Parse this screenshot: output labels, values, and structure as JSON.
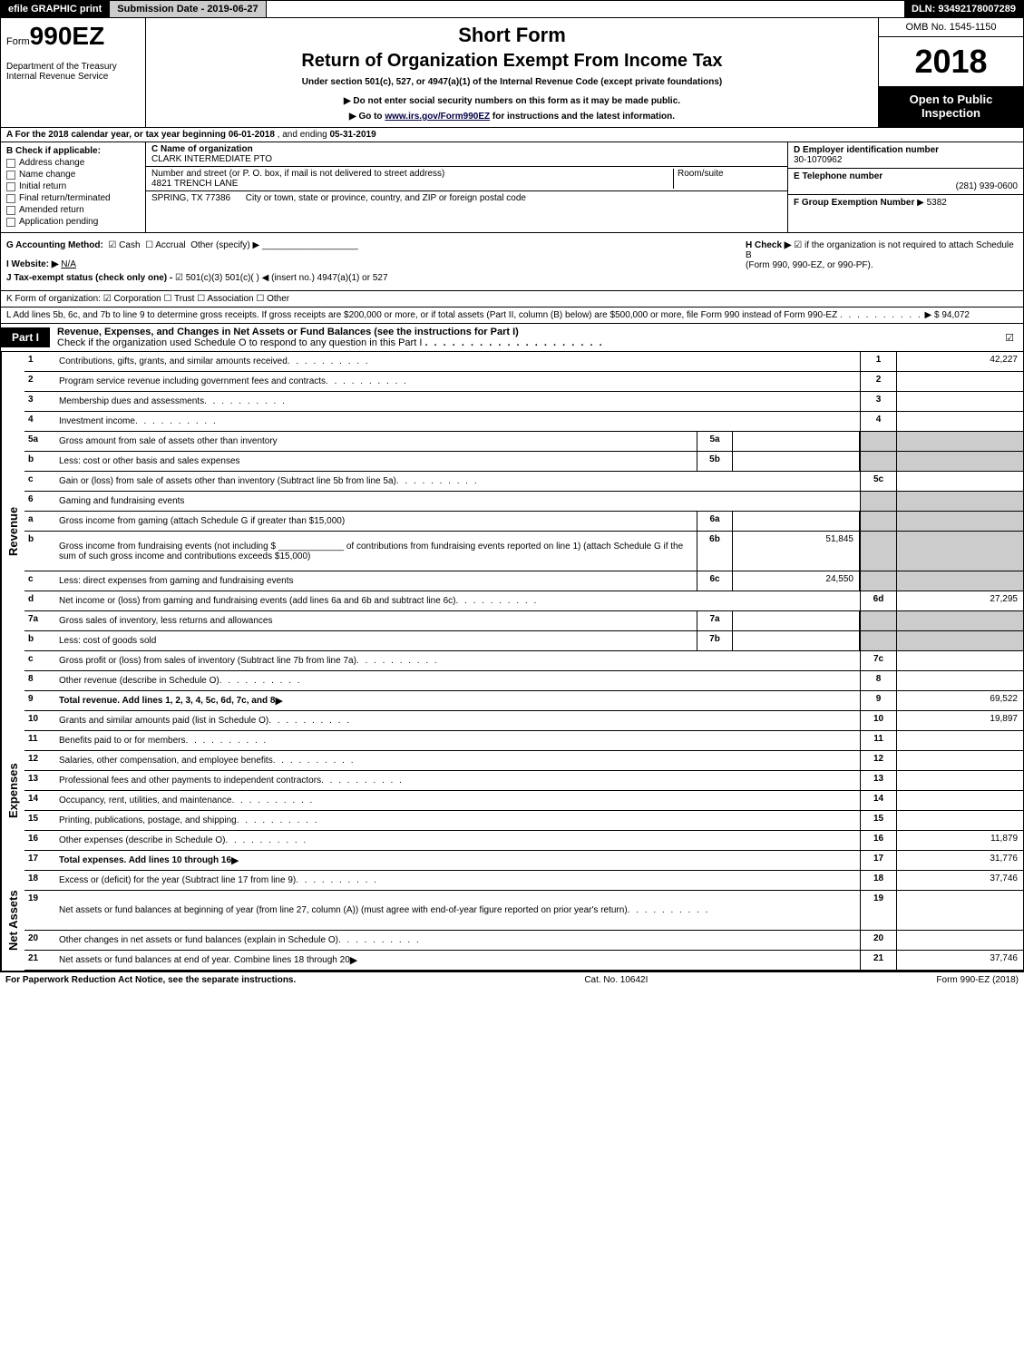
{
  "topbar": {
    "efile": "efile GRAPHIC print",
    "submission": "Submission Date - 2019-06-27",
    "dln": "DLN: 93492178007289"
  },
  "header": {
    "form_prefix": "Form",
    "form_num": "990EZ",
    "dept1": "Department of the Treasury",
    "dept2": "Internal Revenue Service",
    "short_form": "Short Form",
    "title": "Return of Organization Exempt From Income Tax",
    "under": "Under section 501(c), 527, or 4947(a)(1) of the Internal Revenue Code (except private foundations)",
    "donot": "▶ Do not enter social security numbers on this form as it may be made public.",
    "goto_pre": "▶ Go to ",
    "goto_link": "www.irs.gov/Form990EZ",
    "goto_post": " for instructions and the latest information.",
    "omb": "OMB No. 1545-1150",
    "year": "2018",
    "open1": "Open to Public",
    "open2": "Inspection"
  },
  "sectionA": {
    "text_pre": "A  For the 2018 calendar year, or tax year beginning ",
    "begin": "06-01-2018",
    "mid": " , and ending ",
    "end": "05-31-2019"
  },
  "sectionB": {
    "label": "B  Check if applicable:",
    "items": [
      "Address change",
      "Name change",
      "Initial return",
      "Final return/terminated",
      "Amended return",
      "Application pending"
    ]
  },
  "sectionC": {
    "c_label": "C Name of organization",
    "c_name": "CLARK INTERMEDIATE PTO",
    "addr_label": "Number and street (or P. O. box, if mail is not delivered to street address)",
    "addr": "4821 TRENCH LANE",
    "room_label": "Room/suite",
    "city_label": "City or town, state or province, country, and ZIP or foreign postal code",
    "city": "SPRING, TX  77386"
  },
  "sectionDEF": {
    "d_label": "D Employer identification number",
    "d_val": "30-1070962",
    "e_label": "E Telephone number",
    "e_val": "(281) 939-0600",
    "f_label": "F Group Exemption Number",
    "f_arrow": "▶",
    "f_val": "5382"
  },
  "gh": {
    "g_label": "G Accounting Method:",
    "g_cash": "Cash",
    "g_accrual": "Accrual",
    "g_other": "Other (specify) ▶",
    "i_label": "I Website: ▶",
    "i_val": "N/A",
    "j_label": "J Tax-exempt status (check only one) -",
    "j_opts": "501(c)(3)    501(c)(  ) ◀ (insert no.)    4947(a)(1) or    527",
    "h_label": "H  Check ▶",
    "h_text1": "if the organization is not required to attach Schedule B",
    "h_text2": "(Form 990, 990-EZ, or 990-PF)."
  },
  "k": "K Form of organization:    ☑ Corporation    ☐ Trust    ☐ Association    ☐ Other",
  "l": {
    "text": "L Add lines 5b, 6c, and 7b to line 9 to determine gross receipts. If gross receipts are $200,000 or more, or if total assets (Part II, column (B) below) are $500,000 or more, file Form 990 instead of Form 990-EZ",
    "arrow": "▶",
    "amount": "$ 94,072"
  },
  "part1": {
    "label": "Part I",
    "title": "Revenue, Expenses, and Changes in Net Assets or Fund Balances (see the instructions for Part I)",
    "check_text": "Check if the organization used Schedule O to respond to any question in this Part I",
    "checked": "☑"
  },
  "sections": {
    "revenue_label": "Revenue",
    "expenses_label": "Expenses",
    "netassets_label": "Net Assets"
  },
  "rows": [
    {
      "n": "1",
      "desc": "Contributions, gifts, grants, and similar amounts received",
      "rn": "1",
      "rv": "42,227"
    },
    {
      "n": "2",
      "desc": "Program service revenue including government fees and contracts",
      "rn": "2",
      "rv": ""
    },
    {
      "n": "3",
      "desc": "Membership dues and assessments",
      "rn": "3",
      "rv": ""
    },
    {
      "n": "4",
      "desc": "Investment income",
      "rn": "4",
      "rv": ""
    },
    {
      "n": "5a",
      "desc": "Gross amount from sale of assets other than inventory",
      "mn": "5a",
      "mv": "",
      "grey": true
    },
    {
      "n": "b",
      "desc": "Less: cost or other basis and sales expenses",
      "mn": "5b",
      "mv": "",
      "grey": true
    },
    {
      "n": "c",
      "desc": "Gain or (loss) from sale of assets other than inventory (Subtract line 5b from line 5a)",
      "rn": "5c",
      "rv": ""
    },
    {
      "n": "6",
      "desc": "Gaming and fundraising events",
      "grey": true,
      "noright": true
    },
    {
      "n": "a",
      "desc": "Gross income from gaming (attach Schedule G if greater than $15,000)",
      "mn": "6a",
      "mv": "",
      "grey": true
    },
    {
      "n": "b",
      "desc": "Gross income from fundraising events (not including $ _____________ of contributions from fundraising events reported on line 1) (attach Schedule G if the sum of such gross income and contributions exceeds $15,000)",
      "mn": "6b",
      "mv": "51,845",
      "grey": true,
      "tall": true
    },
    {
      "n": "c",
      "desc": "Less: direct expenses from gaming and fundraising events",
      "mn": "6c",
      "mv": "24,550",
      "grey": true
    },
    {
      "n": "d",
      "desc": "Net income or (loss) from gaming and fundraising events (add lines 6a and 6b and subtract line 6c)",
      "rn": "6d",
      "rv": "27,295"
    },
    {
      "n": "7a",
      "desc": "Gross sales of inventory, less returns and allowances",
      "mn": "7a",
      "mv": "",
      "grey": true
    },
    {
      "n": "b",
      "desc": "Less: cost of goods sold",
      "mn": "7b",
      "mv": "",
      "grey": true
    },
    {
      "n": "c",
      "desc": "Gross profit or (loss) from sales of inventory (Subtract line 7b from line 7a)",
      "rn": "7c",
      "rv": ""
    },
    {
      "n": "8",
      "desc": "Other revenue (describe in Schedule O)",
      "rn": "8",
      "rv": ""
    },
    {
      "n": "9",
      "desc": "Total revenue. Add lines 1, 2, 3, 4, 5c, 6d, 7c, and 8",
      "rn": "9",
      "rv": "69,522",
      "bold": true,
      "arrow": true
    }
  ],
  "exp_rows": [
    {
      "n": "10",
      "desc": "Grants and similar amounts paid (list in Schedule O)",
      "rn": "10",
      "rv": "19,897"
    },
    {
      "n": "11",
      "desc": "Benefits paid to or for members",
      "rn": "11",
      "rv": ""
    },
    {
      "n": "12",
      "desc": "Salaries, other compensation, and employee benefits",
      "rn": "12",
      "rv": ""
    },
    {
      "n": "13",
      "desc": "Professional fees and other payments to independent contractors",
      "rn": "13",
      "rv": ""
    },
    {
      "n": "14",
      "desc": "Occupancy, rent, utilities, and maintenance",
      "rn": "14",
      "rv": ""
    },
    {
      "n": "15",
      "desc": "Printing, publications, postage, and shipping",
      "rn": "15",
      "rv": ""
    },
    {
      "n": "16",
      "desc": "Other expenses (describe in Schedule O)",
      "rn": "16",
      "rv": "11,879"
    },
    {
      "n": "17",
      "desc": "Total expenses. Add lines 10 through 16",
      "rn": "17",
      "rv": "31,776",
      "bold": true,
      "arrow": true
    }
  ],
  "na_rows": [
    {
      "n": "18",
      "desc": "Excess or (deficit) for the year (Subtract line 17 from line 9)",
      "rn": "18",
      "rv": "37,746"
    },
    {
      "n": "19",
      "desc": "Net assets or fund balances at beginning of year (from line 27, column (A)) (must agree with end-of-year figure reported on prior year's return)",
      "rn": "19",
      "rv": "",
      "tall": true
    },
    {
      "n": "20",
      "desc": "Other changes in net assets or fund balances (explain in Schedule O)",
      "rn": "20",
      "rv": ""
    },
    {
      "n": "21",
      "desc": "Net assets or fund balances at end of year. Combine lines 18 through 20",
      "rn": "21",
      "rv": "37,746",
      "arrow": true
    }
  ],
  "footer": {
    "left": "For Paperwork Reduction Act Notice, see the separate instructions.",
    "mid": "Cat. No. 10642I",
    "right": "Form 990-EZ (2018)"
  },
  "colors": {
    "black": "#000000",
    "grey": "#cccccc",
    "link": "#0044aa"
  }
}
